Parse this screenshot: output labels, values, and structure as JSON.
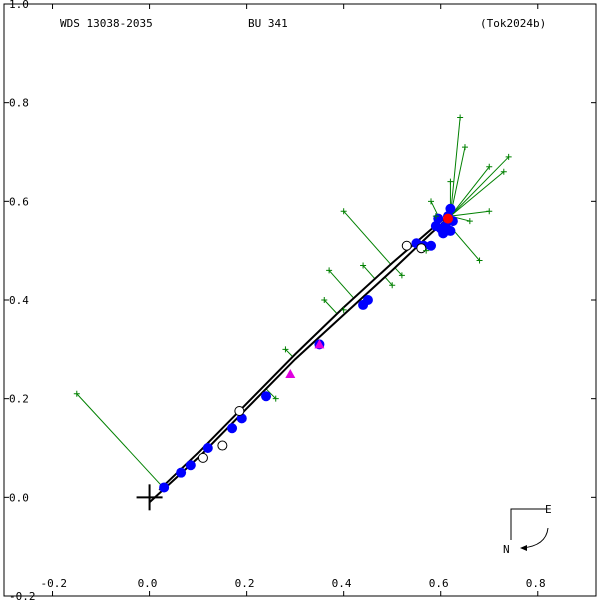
{
  "chart_data": {
    "type": "scatter",
    "title_left": "WDS 13038-2035",
    "title_center": "BU  341",
    "title_right": "(Tok2024b)",
    "xlabel": "",
    "ylabel": "",
    "xlim": [
      -0.3,
      0.92
    ],
    "ylim": [
      -0.2,
      1.0
    ],
    "x_ticks": [
      -0.2,
      0.0,
      0.2,
      0.4,
      0.6,
      0.8
    ],
    "x_tick_labels": [
      "-0.2",
      "0.0",
      "0.2",
      "0.4",
      "0.6",
      "0.8"
    ],
    "y_ticks": [
      -0.2,
      0.0,
      0.2,
      0.4,
      0.6,
      0.8,
      1.0
    ],
    "y_tick_labels": [
      "-0.2",
      "0.0",
      "0.2",
      "0.4",
      "0.6",
      "0.8",
      "1.0"
    ],
    "grid": false,
    "legend": "none",
    "orientation": {
      "east_label": "E",
      "north_label": "N"
    },
    "primary": [
      0,
      0
    ],
    "orbit": {
      "x": [
        0.0,
        0.1,
        0.2,
        0.3,
        0.4,
        0.5,
        0.58,
        0.62,
        0.6,
        0.5,
        0.4,
        0.3,
        0.2,
        0.1,
        0.02
      ],
      "y": [
        -0.01,
        0.08,
        0.18,
        0.28,
        0.37,
        0.46,
        0.535,
        0.57,
        0.56,
        0.475,
        0.385,
        0.29,
        0.19,
        0.09,
        0.015
      ]
    },
    "series": [
      {
        "marker": "filled-circle",
        "color": "#0000ff",
        "x": [
          0.03,
          0.065,
          0.085,
          0.12,
          0.17,
          0.19,
          0.24,
          0.35,
          0.44,
          0.45,
          0.55,
          0.565,
          0.58,
          0.59,
          0.595,
          0.6,
          0.605,
          0.61,
          0.615,
          0.62,
          0.625,
          0.62
        ],
        "y": [
          0.02,
          0.05,
          0.065,
          0.1,
          0.14,
          0.16,
          0.205,
          0.31,
          0.39,
          0.4,
          0.515,
          0.51,
          0.51,
          0.55,
          0.565,
          0.545,
          0.535,
          0.55,
          0.57,
          0.585,
          0.56,
          0.54
        ]
      },
      {
        "marker": "open-circle",
        "color": "#000000",
        "x": [
          0.11,
          0.15,
          0.185,
          0.53,
          0.56
        ],
        "y": [
          0.08,
          0.105,
          0.175,
          0.51,
          0.505
        ]
      },
      {
        "marker": "plus",
        "color": "#008000",
        "x": [
          -0.15,
          0.4,
          0.5,
          0.44,
          0.58,
          0.68,
          0.64,
          0.7,
          0.65,
          0.73,
          0.74,
          0.62,
          0.59,
          0.57,
          0.7,
          0.66,
          0.52,
          0.37,
          0.36,
          0.4,
          0.26,
          0.28
        ],
        "y": [
          0.21,
          0.58,
          0.43,
          0.47,
          0.6,
          0.48,
          0.77,
          0.67,
          0.71,
          0.66,
          0.69,
          0.64,
          0.57,
          0.5,
          0.58,
          0.56,
          0.45,
          0.46,
          0.4,
          0.38,
          0.2,
          0.3
        ]
      },
      {
        "marker": "triangle",
        "color": "#e000e0",
        "x": [
          0.29,
          0.35
        ],
        "y": [
          0.25,
          0.31
        ]
      },
      {
        "marker": "red-point",
        "color": "#ff0000",
        "x": [
          0.615
        ],
        "y": [
          0.565
        ]
      }
    ]
  }
}
